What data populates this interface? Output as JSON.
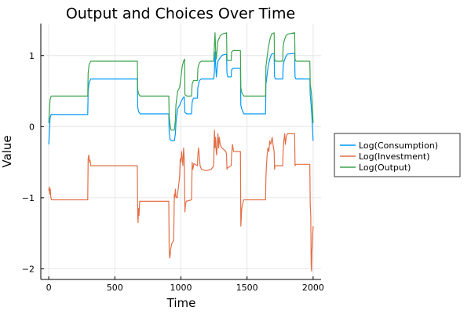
{
  "chart_data": {
    "type": "line",
    "title": "Output and Choices Over Time",
    "xlabel": "Time",
    "ylabel": "Value",
    "xlim": [
      -60,
      2060
    ],
    "ylim": [
      -2.15,
      1.45
    ],
    "xticks": [
      0,
      500,
      1000,
      1500,
      2000
    ],
    "xtick_labels": [
      "0",
      "500",
      "1000",
      "1500",
      "2000"
    ],
    "yticks": [
      -2,
      -1,
      0,
      1
    ],
    "ytick_labels": [
      "−2",
      "−1",
      "0",
      "1"
    ],
    "grid": true,
    "legend_position": "outside-right",
    "series": [
      {
        "name": "Log(Consumption)",
        "color": "#009AFA",
        "points": [
          [
            0,
            -0.25
          ],
          [
            6,
            -0.05
          ],
          [
            10,
            0.12
          ],
          [
            18,
            0.17
          ],
          [
            295,
            0.17
          ],
          [
            298,
            0.5
          ],
          [
            305,
            0.62
          ],
          [
            318,
            0.67
          ],
          [
            670,
            0.67
          ],
          [
            673,
            0.27
          ],
          [
            680,
            0.21
          ],
          [
            692,
            0.18
          ],
          [
            908,
            0.18
          ],
          [
            911,
            -0.08
          ],
          [
            918,
            -0.18
          ],
          [
            930,
            -0.2
          ],
          [
            950,
            -0.2
          ],
          [
            958,
            -0.1
          ],
          [
            962,
            0.05
          ],
          [
            975,
            0.25
          ],
          [
            990,
            0.3
          ],
          [
            1000,
            0.35
          ],
          [
            1015,
            0.4
          ],
          [
            1025,
            0.42
          ],
          [
            1030,
            0.2
          ],
          [
            1045,
            0.18
          ],
          [
            1080,
            0.18
          ],
          [
            1085,
            0.35
          ],
          [
            1095,
            0.4
          ],
          [
            1125,
            0.4
          ],
          [
            1128,
            0.55
          ],
          [
            1140,
            0.65
          ],
          [
            1155,
            0.67
          ],
          [
            1248,
            0.67
          ],
          [
            1252,
            0.75
          ],
          [
            1258,
            1.05
          ],
          [
            1263,
            0.85
          ],
          [
            1268,
            0.7
          ],
          [
            1272,
            0.78
          ],
          [
            1280,
            0.92
          ],
          [
            1290,
            0.95
          ],
          [
            1298,
            0.97
          ],
          [
            1310,
            1.0
          ],
          [
            1320,
            1.01
          ],
          [
            1345,
            1.02
          ],
          [
            1348,
            0.75
          ],
          [
            1355,
            0.7
          ],
          [
            1380,
            0.7
          ],
          [
            1383,
            0.8
          ],
          [
            1395,
            0.82
          ],
          [
            1450,
            0.82
          ],
          [
            1453,
            0.3
          ],
          [
            1460,
            0.25
          ],
          [
            1475,
            0.18
          ],
          [
            1640,
            0.18
          ],
          [
            1643,
            0.6
          ],
          [
            1650,
            0.7
          ],
          [
            1660,
            0.85
          ],
          [
            1672,
            0.95
          ],
          [
            1685,
            1.02
          ],
          [
            1705,
            1.03
          ],
          [
            1708,
            0.7
          ],
          [
            1715,
            0.67
          ],
          [
            1770,
            0.67
          ],
          [
            1773,
            0.85
          ],
          [
            1780,
            0.92
          ],
          [
            1792,
            0.98
          ],
          [
            1805,
            1.02
          ],
          [
            1860,
            1.03
          ],
          [
            1863,
            0.7
          ],
          [
            1870,
            0.67
          ],
          [
            1975,
            0.67
          ],
          [
            1978,
            0.45
          ],
          [
            1985,
            0.3
          ],
          [
            1992,
            0.1
          ],
          [
            2000,
            -0.2
          ]
        ]
      },
      {
        "name": "Log(Investment)",
        "color": "#E26F46",
        "points": [
          [
            0,
            -0.9
          ],
          [
            4,
            -0.85
          ],
          [
            8,
            -0.95
          ],
          [
            12,
            -0.88
          ],
          [
            16,
            -1.0
          ],
          [
            22,
            -1.03
          ],
          [
            295,
            -1.03
          ],
          [
            298,
            -0.45
          ],
          [
            303,
            -0.4
          ],
          [
            308,
            -0.5
          ],
          [
            312,
            -0.47
          ],
          [
            318,
            -0.55
          ],
          [
            670,
            -0.55
          ],
          [
            673,
            -1.25
          ],
          [
            676,
            -1.35
          ],
          [
            679,
            -1.15
          ],
          [
            683,
            -1.25
          ],
          [
            688,
            -1.05
          ],
          [
            908,
            -1.05
          ],
          [
            911,
            -1.75
          ],
          [
            915,
            -1.85
          ],
          [
            919,
            -1.8
          ],
          [
            923,
            -1.72
          ],
          [
            930,
            -1.65
          ],
          [
            945,
            -1.6
          ],
          [
            950,
            -0.95
          ],
          [
            954,
            -1.0
          ],
          [
            958,
            -0.88
          ],
          [
            962,
            -0.98
          ],
          [
            967,
            -1.0
          ],
          [
            972,
            -1.0
          ],
          [
            990,
            -0.7
          ],
          [
            995,
            -0.45
          ],
          [
            1000,
            -0.5
          ],
          [
            1005,
            -0.35
          ],
          [
            1010,
            -0.45
          ],
          [
            1015,
            -0.55
          ],
          [
            1020,
            -0.3
          ],
          [
            1025,
            -0.45
          ],
          [
            1030,
            -1.2
          ],
          [
            1034,
            -1.1
          ],
          [
            1040,
            -1.05
          ],
          [
            1080,
            -1.03
          ],
          [
            1085,
            -0.5
          ],
          [
            1090,
            -0.6
          ],
          [
            1098,
            -0.52
          ],
          [
            1125,
            -0.55
          ],
          [
            1128,
            -0.4
          ],
          [
            1133,
            -0.3
          ],
          [
            1138,
            -0.4
          ],
          [
            1145,
            -0.55
          ],
          [
            1155,
            -0.6
          ],
          [
            1190,
            -0.62
          ],
          [
            1230,
            -0.6
          ],
          [
            1248,
            -0.55
          ],
          [
            1251,
            -0.2
          ],
          [
            1254,
            -0.05
          ],
          [
            1257,
            -0.3
          ],
          [
            1262,
            -0.15
          ],
          [
            1267,
            -0.35
          ],
          [
            1270,
            -0.4
          ],
          [
            1280,
            -0.1
          ],
          [
            1285,
            -0.3
          ],
          [
            1290,
            -0.15
          ],
          [
            1297,
            -0.25
          ],
          [
            1310,
            -0.3
          ],
          [
            1340,
            -0.35
          ],
          [
            1345,
            -0.4
          ],
          [
            1348,
            -0.6
          ],
          [
            1352,
            -0.58
          ],
          [
            1380,
            -0.55
          ],
          [
            1383,
            -0.4
          ],
          [
            1390,
            -0.25
          ],
          [
            1398,
            -0.35
          ],
          [
            1450,
            -0.35
          ],
          [
            1453,
            -1.4
          ],
          [
            1456,
            -1.3
          ],
          [
            1460,
            -1.15
          ],
          [
            1465,
            -1.1
          ],
          [
            1475,
            -1.03
          ],
          [
            1640,
            -1.03
          ],
          [
            1643,
            -0.7
          ],
          [
            1647,
            -0.55
          ],
          [
            1652,
            -0.4
          ],
          [
            1658,
            -0.3
          ],
          [
            1665,
            -0.35
          ],
          [
            1672,
            -0.2
          ],
          [
            1680,
            -0.25
          ],
          [
            1690,
            -0.15
          ],
          [
            1700,
            -0.3
          ],
          [
            1705,
            -0.35
          ],
          [
            1708,
            -0.6
          ],
          [
            1712,
            -0.55
          ],
          [
            1770,
            -0.55
          ],
          [
            1773,
            -0.35
          ],
          [
            1778,
            -0.2
          ],
          [
            1785,
            -0.1
          ],
          [
            1790,
            -0.25
          ],
          [
            1797,
            -0.15
          ],
          [
            1805,
            -0.1
          ],
          [
            1860,
            -0.1
          ],
          [
            1863,
            -0.55
          ],
          [
            1868,
            -0.53
          ],
          [
            1975,
            -0.53
          ],
          [
            1978,
            -1.1
          ],
          [
            1982,
            -1.25
          ],
          [
            1985,
            -1.95
          ],
          [
            1988,
            -2.03
          ],
          [
            1991,
            -1.75
          ],
          [
            1994,
            -1.65
          ],
          [
            1997,
            -1.5
          ],
          [
            2000,
            -1.4
          ]
        ]
      },
      {
        "name": "Log(Output)",
        "color": "#3DA44D",
        "points": [
          [
            0,
            0.05
          ],
          [
            6,
            0.25
          ],
          [
            10,
            0.38
          ],
          [
            18,
            0.43
          ],
          [
            295,
            0.43
          ],
          [
            298,
            0.75
          ],
          [
            305,
            0.87
          ],
          [
            318,
            0.92
          ],
          [
            670,
            0.92
          ],
          [
            673,
            0.52
          ],
          [
            680,
            0.46
          ],
          [
            692,
            0.43
          ],
          [
            908,
            0.43
          ],
          [
            911,
            0.15
          ],
          [
            918,
            0.02
          ],
          [
            925,
            -0.05
          ],
          [
            950,
            -0.05
          ],
          [
            958,
            0.1
          ],
          [
            962,
            0.3
          ],
          [
            975,
            0.5
          ],
          [
            990,
            0.55
          ],
          [
            1000,
            0.7
          ],
          [
            1010,
            0.85
          ],
          [
            1020,
            0.92
          ],
          [
            1028,
            0.95
          ],
          [
            1030,
            0.45
          ],
          [
            1045,
            0.43
          ],
          [
            1080,
            0.43
          ],
          [
            1085,
            0.6
          ],
          [
            1095,
            0.65
          ],
          [
            1125,
            0.65
          ],
          [
            1128,
            0.82
          ],
          [
            1140,
            0.9
          ],
          [
            1155,
            0.92
          ],
          [
            1248,
            0.92
          ],
          [
            1252,
            1.1
          ],
          [
            1258,
            1.32
          ],
          [
            1263,
            1.05
          ],
          [
            1268,
            0.95
          ],
          [
            1272,
            1.05
          ],
          [
            1280,
            1.2
          ],
          [
            1290,
            1.25
          ],
          [
            1298,
            1.28
          ],
          [
            1310,
            1.3
          ],
          [
            1345,
            1.32
          ],
          [
            1348,
            0.95
          ],
          [
            1355,
            0.93
          ],
          [
            1380,
            0.93
          ],
          [
            1383,
            1.05
          ],
          [
            1395,
            1.07
          ],
          [
            1450,
            1.07
          ],
          [
            1453,
            0.55
          ],
          [
            1460,
            0.48
          ],
          [
            1475,
            0.43
          ],
          [
            1640,
            0.43
          ],
          [
            1643,
            0.85
          ],
          [
            1650,
            0.95
          ],
          [
            1660,
            1.1
          ],
          [
            1672,
            1.22
          ],
          [
            1685,
            1.3
          ],
          [
            1705,
            1.32
          ],
          [
            1708,
            0.95
          ],
          [
            1715,
            0.92
          ],
          [
            1770,
            0.92
          ],
          [
            1773,
            1.12
          ],
          [
            1780,
            1.2
          ],
          [
            1792,
            1.27
          ],
          [
            1805,
            1.3
          ],
          [
            1860,
            1.32
          ],
          [
            1863,
            0.95
          ],
          [
            1870,
            0.92
          ],
          [
            1975,
            0.92
          ],
          [
            1978,
            0.6
          ],
          [
            1985,
            0.5
          ],
          [
            1992,
            0.35
          ],
          [
            2000,
            0.05
          ]
        ]
      }
    ]
  }
}
